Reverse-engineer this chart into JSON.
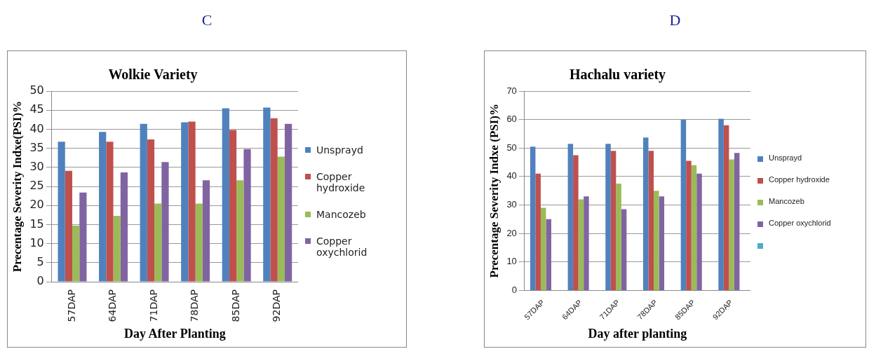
{
  "chart_data": [
    {
      "type": "bar",
      "annotations": [
        "C"
      ],
      "title": "Wolkie Variety",
      "xlabel": "Day After Planting",
      "ylabel": "Precentage Severity Indxe(PSI)%",
      "categories": [
        "57DAP",
        "64DAP",
        "71DAP",
        "78DAP",
        "85DAP",
        "92DAP"
      ],
      "series": [
        {
          "name": "Unsprayd",
          "color": "#4f81bd",
          "values": [
            36.7,
            39.3,
            41.4,
            41.8,
            45.5,
            45.7
          ]
        },
        {
          "name": "Copper hydroxide",
          "color": "#c0504d",
          "values": [
            29.1,
            36.7,
            37.3,
            42,
            39.8,
            42.9
          ]
        },
        {
          "name": "Mancozeb",
          "color": "#9bbb59",
          "values": [
            14.7,
            17.3,
            20.5,
            20.5,
            26.6,
            32.8
          ]
        },
        {
          "name": "Copper oxychlorid",
          "color": "#8064a2",
          "values": [
            23.4,
            28.7,
            31.4,
            26.6,
            34.8,
            41.4
          ]
        }
      ],
      "ylim": [
        0,
        50
      ],
      "yticks": [
        0,
        5,
        10,
        15,
        20,
        25,
        30,
        35,
        40,
        45,
        50
      ],
      "grid": "y",
      "legend": "right"
    },
    {
      "type": "bar",
      "annotations": [
        "D"
      ],
      "title": "Hachalu variety",
      "xlabel": "Day after planting",
      "ylabel": "Precentage Severity Indxe (PSI)%",
      "categories": [
        "57DAP",
        "64DAP",
        "71DAP",
        "78DAP",
        "85DAP",
        "92DAP"
      ],
      "series": [
        {
          "name": "Unsprayd",
          "color": "#4f81bd",
          "values": [
            50.5,
            51.5,
            51.5,
            53.7,
            60,
            60.3
          ]
        },
        {
          "name": "Copper hydroxide",
          "color": "#c0504d",
          "values": [
            41,
            47.5,
            49,
            49,
            45.5,
            58
          ]
        },
        {
          "name": "Mancozeb",
          "color": "#9bbb59",
          "values": [
            29,
            32,
            37.5,
            35,
            44,
            46
          ]
        },
        {
          "name": "Copper oxychlorid",
          "color": "#8064a2",
          "values": [
            25,
            33,
            28.5,
            33,
            41,
            48.3
          ]
        },
        {
          "color": "#4bacc6",
          "values": [
            null,
            null,
            null,
            null,
            null,
            null
          ]
        }
      ],
      "ylim": [
        0,
        70
      ],
      "yticks": [
        0,
        10,
        20,
        30,
        40,
        50,
        60,
        70
      ],
      "grid": "y",
      "legend": "right"
    }
  ]
}
